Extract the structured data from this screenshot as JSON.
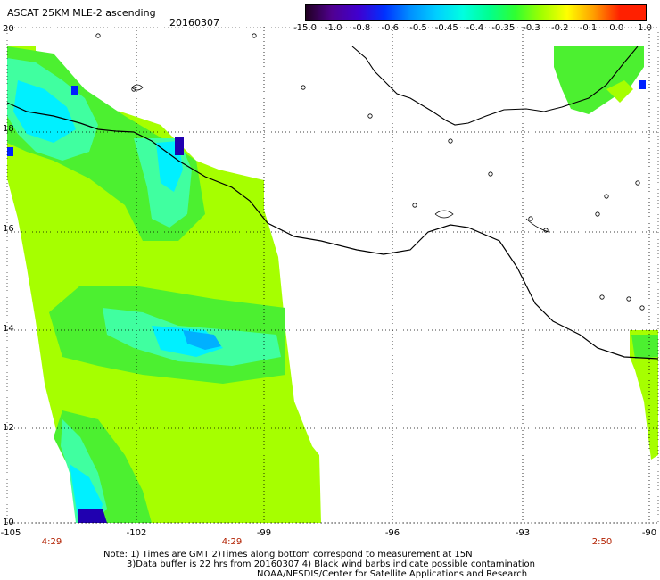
{
  "header": {
    "title": "ASCAT 25KM MLE-2 ascending",
    "date": "20160307"
  },
  "colorbar": {
    "labels": [
      "-15.0",
      "-1.0",
      "-0.8",
      "-0.6",
      "-0.5",
      "-0.45",
      "-0.4",
      "-0.35",
      "-0.3",
      "-0.2",
      "-0.1",
      "0.0",
      "1.0"
    ],
    "colors": [
      "#200020",
      "#500090",
      "#4000d0",
      "#0030ff",
      "#0090ff",
      "#00d0ff",
      "#00ffe0",
      "#00ff90",
      "#30ff30",
      "#a0ff00",
      "#ffff00",
      "#ffa000",
      "#ff2000"
    ]
  },
  "axes": {
    "lat_labels": [
      "20",
      "18",
      "16",
      "14",
      "12",
      "10"
    ],
    "lon_labels": [
      "-105",
      "-102",
      "-99",
      "-96",
      "-93",
      "-90"
    ],
    "time_labels": [
      "4:29",
      "4:29",
      "2:50"
    ]
  },
  "notes": {
    "line1": "Note: 1) Times are GMT 2)Times along bottom correspond to measurement at 15N",
    "line2": "3)Data buffer is 22 hrs from 20160307 4) Black wind barbs indicate possible contamination",
    "line3": "NOAA/NESDIS/Center for Satellite Applications and Research"
  },
  "palette": {
    "background": "#ffffff",
    "lime": "#a6ff00",
    "green": "#4cf030",
    "aqua": "#40ffa0",
    "cyan": "#00f0ff",
    "sky": "#00b0ff",
    "blue": "#0020ff",
    "navy": "#2000b0",
    "coast": "#000000"
  }
}
